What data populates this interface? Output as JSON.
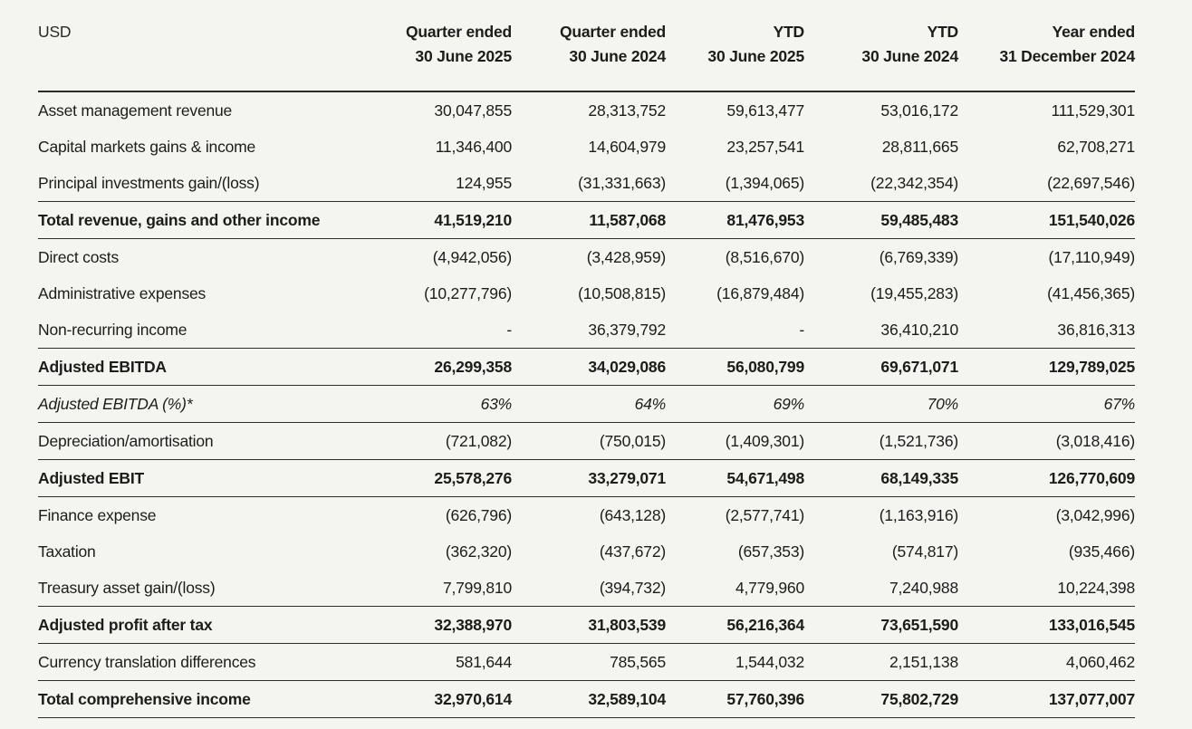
{
  "page": {
    "background": "#f4f4f1",
    "text_color": "#1c1c1c",
    "line_color": "#2b2b2b"
  },
  "table": {
    "unit_label": "USD",
    "columns": [
      {
        "line1": "Quarter ended",
        "line2": "30 June 2025"
      },
      {
        "line1": "Quarter ended",
        "line2": "30 June 2024"
      },
      {
        "line1": "YTD",
        "line2": "30 June 2025"
      },
      {
        "line1": "YTD",
        "line2": "30 June 2024"
      },
      {
        "line1": "Year ended",
        "line2": "31 December 2024"
      }
    ],
    "rows": [
      {
        "label": "Asset management revenue",
        "style": "normal",
        "values": [
          "30,047,855",
          "28,313,752",
          "59,613,477",
          "53,016,172",
          "111,529,301"
        ]
      },
      {
        "label": "Capital markets gains & income",
        "style": "normal",
        "values": [
          "11,346,400",
          "14,604,979",
          "23,257,541",
          "28,811,665",
          "62,708,271"
        ]
      },
      {
        "label": "Principal investments gain/(loss)",
        "style": "normal",
        "values": [
          "124,955",
          "(31,331,663)",
          "(1,394,065)",
          "(22,342,354)",
          "(22,697,546)"
        ]
      },
      {
        "label": "Total revenue, gains and other income",
        "style": "total",
        "values": [
          "41,519,210",
          "11,587,068",
          "81,476,953",
          "59,485,483",
          "151,540,026"
        ]
      },
      {
        "label": "Direct costs",
        "style": "normal",
        "values": [
          "(4,942,056)",
          "(3,428,959)",
          "(8,516,670)",
          "(6,769,339)",
          "(17,110,949)"
        ]
      },
      {
        "label": "Administrative expenses",
        "style": "normal",
        "values": [
          "(10,277,796)",
          "(10,508,815)",
          "(16,879,484)",
          "(19,455,283)",
          "(41,456,365)"
        ]
      },
      {
        "label": "Non-recurring income",
        "style": "normal",
        "values": [
          "-",
          "36,379,792",
          "-",
          "36,410,210",
          "36,816,313"
        ]
      },
      {
        "label": "Adjusted EBITDA",
        "style": "total",
        "values": [
          "26,299,358",
          "34,029,086",
          "56,080,799",
          "69,671,071",
          "129,789,025"
        ]
      },
      {
        "label": "Adjusted EBITDA (%)*",
        "style": "percent",
        "values": [
          "63%",
          "64%",
          "69%",
          "70%",
          "67%"
        ]
      },
      {
        "label": "Depreciation/amortisation",
        "style": "normal",
        "values": [
          "(721,082)",
          "(750,015)",
          "(1,409,301)",
          "(1,521,736)",
          "(3,018,416)"
        ]
      },
      {
        "label": "Adjusted EBIT",
        "style": "total",
        "values": [
          "25,578,276",
          "33,279,071",
          "54,671,498",
          "68,149,335",
          "126,770,609"
        ]
      },
      {
        "label": "Finance expense",
        "style": "normal",
        "values": [
          "(626,796)",
          "(643,128)",
          "(2,577,741)",
          "(1,163,916)",
          "(3,042,996)"
        ]
      },
      {
        "label": "Taxation",
        "style": "normal",
        "values": [
          "(362,320)",
          "(437,672)",
          "(657,353)",
          "(574,817)",
          "(935,466)"
        ]
      },
      {
        "label": "Treasury asset gain/(loss)",
        "style": "normal",
        "values": [
          "7,799,810",
          "(394,732)",
          "4,779,960",
          "7,240,988",
          "10,224,398"
        ]
      },
      {
        "label": "Adjusted profit after tax",
        "style": "total",
        "values": [
          "32,388,970",
          "31,803,539",
          "56,216,364",
          "73,651,590",
          "133,016,545"
        ]
      },
      {
        "label": "Currency translation differences",
        "style": "normal",
        "values": [
          "581,644",
          "785,565",
          "1,544,032",
          "2,151,138",
          "4,060,462"
        ]
      },
      {
        "label": "Total comprehensive income",
        "style": "total",
        "values": [
          "32,970,614",
          "32,589,104",
          "57,760,396",
          "75,802,729",
          "137,077,007"
        ]
      }
    ]
  }
}
